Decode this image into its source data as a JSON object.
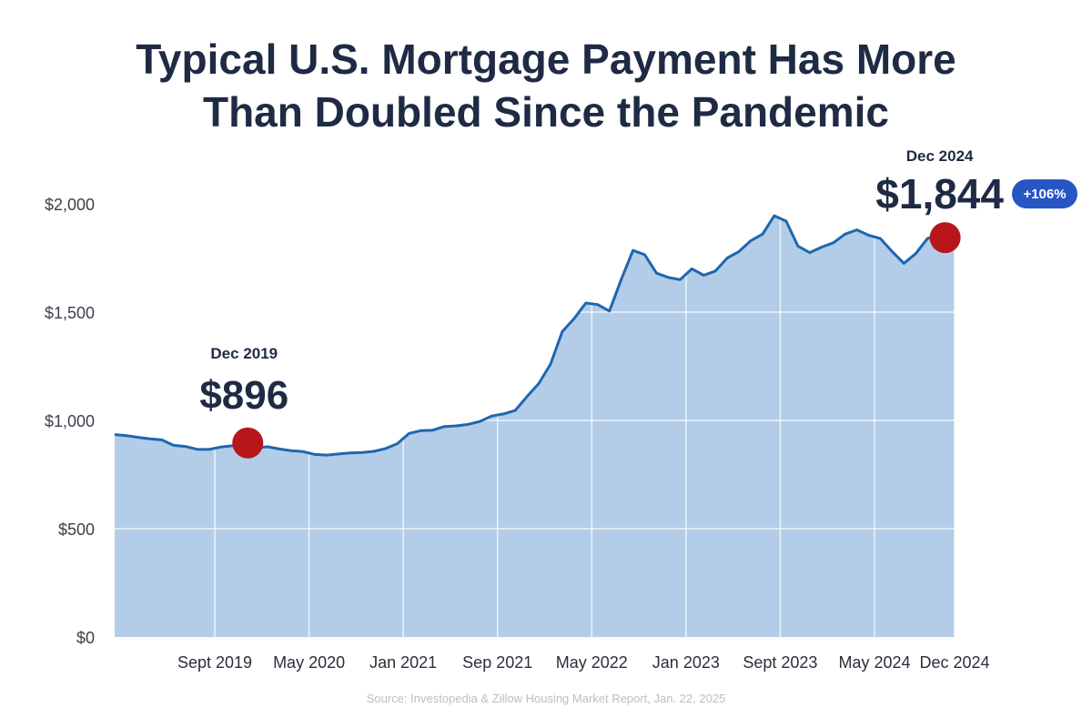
{
  "title_lines": [
    "Typical U.S. Mortgage Payment Has More",
    "Than Doubled Since the Pandemic"
  ],
  "source": "Source: Investopedia & Zillow Housing Market Report, Jan. 22, 2025",
  "chart_data": {
    "type": "area",
    "title": "Typical U.S. Mortgage Payment Has More Than Doubled Since the Pandemic",
    "xlabel": "",
    "ylabel": "",
    "ylim": [
      0,
      2000
    ],
    "y_ticks": [
      0,
      500,
      1000,
      1500,
      2000
    ],
    "y_tick_labels": [
      "$0",
      "$500",
      "$1,000",
      "$1,500",
      "$2,000"
    ],
    "x_range": [
      0,
      71.3
    ],
    "x_tick_positions": [
      8.5,
      16.5,
      24.5,
      32.5,
      40.5,
      48.5,
      56.5,
      64.5,
      71.3
    ],
    "x_tick_labels": [
      "Sept 2019",
      "May 2020",
      "Jan 2021",
      "Sep 2021",
      "May 2022",
      "Jan 2023",
      "Sept 2023",
      "May 2024",
      "Dec 2024"
    ],
    "grid": true,
    "x": [
      0,
      1,
      2,
      3,
      4,
      5,
      6,
      7,
      8,
      9,
      10,
      11,
      12,
      13,
      14,
      15,
      16,
      17,
      18,
      19,
      20,
      21,
      22,
      23,
      24,
      25,
      26,
      27,
      28,
      29,
      30,
      31,
      32,
      33,
      34,
      35,
      36,
      37,
      38,
      39,
      40,
      41,
      42,
      43,
      44,
      45,
      46,
      47,
      48,
      49,
      50,
      51,
      52,
      53,
      54,
      55,
      56,
      57,
      58,
      59,
      60,
      61,
      62,
      63,
      64,
      65,
      66,
      67,
      68,
      69,
      70,
      71.3
    ],
    "values": [
      935,
      930,
      922,
      915,
      910,
      885,
      880,
      867,
      866,
      877,
      883,
      878,
      875,
      878,
      868,
      860,
      856,
      843,
      840,
      845,
      850,
      852,
      857,
      870,
      893,
      940,
      953,
      955,
      972,
      975,
      982,
      995,
      1020,
      1030,
      1046,
      1110,
      1170,
      1260,
      1410,
      1470,
      1542,
      1535,
      1505,
      1650,
      1785,
      1765,
      1680,
      1660,
      1650,
      1700,
      1670,
      1690,
      1750,
      1780,
      1830,
      1860,
      1945,
      1920,
      1805,
      1775,
      1800,
      1820,
      1860,
      1880,
      1855,
      1840,
      1780,
      1725,
      1770,
      1840,
      1855,
      1870
    ],
    "annotations": [
      {
        "x": 11.3,
        "value": 896,
        "label": "Dec 2019",
        "text": "$896"
      },
      {
        "x": 70.5,
        "value": 1844,
        "label": "Dec 2024",
        "text": "$1,844",
        "badge": "+106%"
      }
    ],
    "colors": {
      "line": "#1e66b0",
      "fill": "#b3cde8",
      "marker": "#b8161b",
      "badge": "#2855c4",
      "text": "#1f2a44"
    }
  }
}
